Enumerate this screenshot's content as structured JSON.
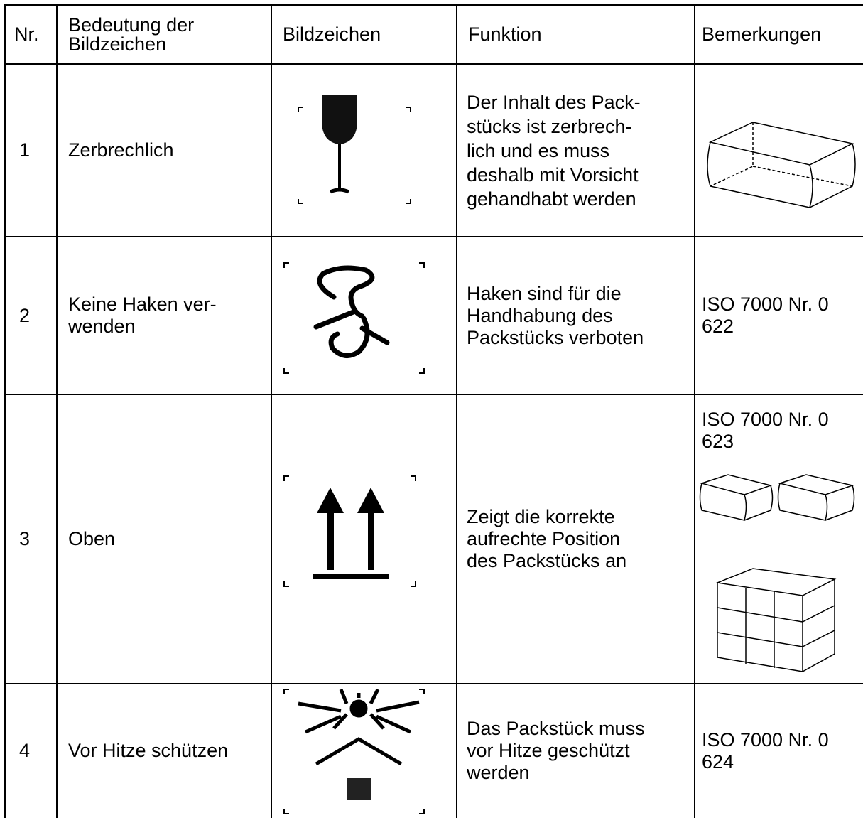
{
  "table": {
    "headers": [
      "Nr.",
      "Bedeutung der\nBildzeichen",
      "Bildzeichen",
      "Funktion",
      "Bemerkungen"
    ],
    "rows": [
      {
        "nr": "1",
        "bedeutung": "Zerbrechlich",
        "funktion": "Der Inhalt des Pack-\nstücks ist zerbrech-\nlich und es muss\ndeshalb mit Vorsicht\ngehandhabt werden"
      },
      {
        "nr": "2",
        "bedeutung": "Keine Haken ver-\nwenden",
        "funktion": "Haken sind für die\nHandhabung des\nPackstücks verboten",
        "bemerkung": "ISO 7000 Nr. 0\n622"
      },
      {
        "nr": "3",
        "bedeutung": "Oben",
        "funktion": "Zeigt die korrekte\naufrechte Position\ndes Packstücks an",
        "bemerkung": "ISO 7000 Nr. 0\n623"
      },
      {
        "nr": "4",
        "bedeutung": "Vor Hitze schützen",
        "funktion": "Das Packstück muss\nvor Hitze geschützt\nwerden",
        "bemerkung": "ISO 7000 Nr. 0\n624"
      }
    ]
  }
}
